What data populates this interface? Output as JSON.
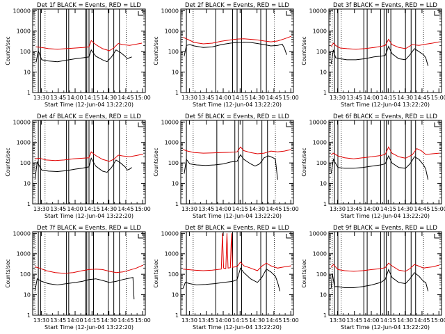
{
  "colors": {
    "events": "#000000",
    "lld": "#e00000",
    "axes": "#000000",
    "background": "#ffffff"
  },
  "shared_axes": {
    "ylabel": "Counts/sec",
    "xlabel": "Start Time (12-Jun-04 13:22:20)",
    "x_tick_labels": [
      "13:30",
      "13:45",
      "14:00",
      "14:15",
      "14:30",
      "14:45",
      "15:00"
    ],
    "x_tick_minutes": [
      7.667,
      22.667,
      37.667,
      52.667,
      67.667,
      82.667,
      97.667
    ],
    "y_tick_labels": [
      "1",
      "10",
      "100",
      "1000",
      "10000"
    ],
    "y_tick_values": [
      1,
      10,
      100,
      1000,
      10000
    ],
    "xlim_minutes": [
      0,
      100
    ],
    "ylim": [
      1,
      12000
    ],
    "yscale": "log"
  },
  "chart_data": [
    {
      "type": "line",
      "title": "Det 1f BLACK = Events, RED = LLD",
      "series": [
        {
          "color": "#e00000",
          "x": [
            3,
            8,
            14,
            22,
            30,
            38,
            45,
            50,
            52,
            56,
            62,
            68,
            72,
            76,
            80,
            86,
            92,
            97
          ],
          "y": [
            170,
            160,
            140,
            130,
            140,
            150,
            160,
            170,
            350,
            220,
            140,
            110,
            150,
            250,
            220,
            200,
            230,
            260
          ]
        },
        {
          "color": "#000000",
          "x": [
            3,
            5,
            8,
            14,
            22,
            30,
            38,
            45,
            50,
            52,
            56,
            62,
            66,
            70,
            74,
            78,
            82,
            84,
            86,
            88
          ],
          "y": [
            30,
            110,
            40,
            35,
            32,
            38,
            45,
            50,
            55,
            120,
            60,
            40,
            32,
            55,
            120,
            90,
            60,
            45,
            50,
            55
          ]
        }
      ],
      "vlines_solid": [
        5,
        7,
        30,
        32,
        47,
        48,
        50,
        54,
        67,
        72,
        77
      ],
      "vlines_dotted": [
        2,
        11,
        83
      ]
    },
    {
      "type": "line",
      "title": "Det 2f BLACK = Events, RED = LLD",
      "series": [
        {
          "color": "#e00000",
          "x": [
            2,
            6,
            12,
            20,
            28,
            36,
            44,
            50,
            56,
            62,
            68,
            74,
            80,
            86,
            92,
            98
          ],
          "y": [
            500,
            400,
            280,
            240,
            260,
            320,
            370,
            410,
            420,
            400,
            370,
            330,
            300,
            330,
            420,
            560
          ]
        },
        {
          "color": "#000000",
          "x": [
            3,
            5,
            8,
            12,
            20,
            28,
            36,
            44,
            50,
            56,
            62,
            68,
            74,
            80,
            86,
            90,
            92,
            94
          ],
          "y": [
            60,
            200,
            220,
            190,
            160,
            170,
            220,
            260,
            280,
            290,
            280,
            250,
            220,
            190,
            200,
            230,
            150,
            70
          ]
        }
      ],
      "vlines_solid": [
        5,
        31,
        46,
        50,
        54,
        71,
        76
      ],
      "vlines_dotted": [
        11,
        83
      ]
    },
    {
      "type": "line",
      "title": "Det 3f BLACK = Events, RED = LLD",
      "series": [
        {
          "color": "#e00000",
          "x": [
            2,
            4,
            6,
            10,
            16,
            24,
            32,
            40,
            46,
            50,
            53,
            56,
            62,
            68,
            74,
            80,
            86,
            92,
            98
          ],
          "y": [
            180,
            260,
            200,
            150,
            140,
            130,
            140,
            160,
            180,
            200,
            400,
            220,
            160,
            140,
            220,
            200,
            230,
            260,
            300
          ]
        },
        {
          "color": "#000000",
          "x": [
            2,
            4,
            6,
            10,
            16,
            24,
            32,
            40,
            46,
            50,
            53,
            56,
            62,
            68,
            72,
            76,
            80,
            84,
            86,
            88
          ],
          "y": [
            25,
            120,
            50,
            45,
            40,
            40,
            45,
            55,
            60,
            65,
            180,
            80,
            45,
            40,
            70,
            140,
            100,
            70,
            50,
            20
          ]
        }
      ],
      "vlines_solid": [
        5,
        8,
        31,
        34,
        46,
        49,
        51,
        55,
        68,
        73,
        77
      ],
      "vlines_dotted": [
        3,
        11,
        84
      ]
    },
    {
      "type": "line",
      "title": "Det 4f BLACK = Events, RED = LLD",
      "series": [
        {
          "color": "#e00000",
          "x": [
            2,
            6,
            12,
            20,
            28,
            36,
            44,
            50,
            52,
            56,
            62,
            68,
            72,
            76,
            80,
            86,
            92,
            98
          ],
          "y": [
            160,
            170,
            140,
            130,
            140,
            160,
            170,
            180,
            350,
            230,
            150,
            120,
            150,
            240,
            220,
            200,
            230,
            270
          ]
        },
        {
          "color": "#000000",
          "x": [
            2,
            4,
            8,
            14,
            22,
            30,
            38,
            44,
            50,
            52,
            56,
            62,
            66,
            70,
            74,
            78,
            82,
            84,
            86,
            88
          ],
          "y": [
            15,
            110,
            45,
            40,
            38,
            42,
            50,
            55,
            65,
            170,
            70,
            40,
            35,
            60,
            140,
            100,
            65,
            45,
            50,
            60
          ]
        }
      ],
      "vlines_solid": [
        5,
        7,
        30,
        32,
        47,
        48,
        50,
        54,
        67,
        72,
        77
      ],
      "vlines_dotted": [
        2,
        11,
        83
      ]
    },
    {
      "type": "line",
      "title": "Det 5f BLACK = Events, RED = LLD",
      "series": [
        {
          "color": "#e00000",
          "x": [
            2,
            6,
            12,
            20,
            28,
            36,
            44,
            50,
            53,
            56,
            62,
            68,
            74,
            80,
            86,
            92,
            98
          ],
          "y": [
            450,
            380,
            320,
            300,
            310,
            320,
            330,
            350,
            600,
            400,
            320,
            280,
            300,
            380,
            350,
            380,
            450
          ]
        },
        {
          "color": "#000000",
          "x": [
            3,
            5,
            8,
            14,
            22,
            30,
            38,
            44,
            50,
            53,
            56,
            62,
            66,
            70,
            74,
            78,
            82,
            84,
            86
          ],
          "y": [
            30,
            150,
            90,
            80,
            75,
            80,
            90,
            110,
            120,
            250,
            150,
            90,
            70,
            90,
            180,
            220,
            180,
            150,
            15
          ]
        }
      ],
      "vlines_solid": [
        5,
        32,
        48,
        51,
        55,
        72,
        77
      ],
      "vlines_dotted": [
        11,
        84
      ]
    },
    {
      "type": "line",
      "title": "Det 6f BLACK = Events, RED = LLD",
      "series": [
        {
          "color": "#e00000",
          "x": [
            2,
            4,
            8,
            14,
            22,
            30,
            38,
            46,
            50,
            53,
            56,
            62,
            68,
            74,
            78,
            82,
            86,
            92,
            98
          ],
          "y": [
            250,
            300,
            220,
            180,
            160,
            180,
            200,
            230,
            260,
            600,
            300,
            200,
            170,
            250,
            500,
            400,
            260,
            280,
            300
          ]
        },
        {
          "color": "#000000",
          "x": [
            2,
            4,
            8,
            14,
            22,
            30,
            38,
            46,
            50,
            53,
            56,
            62,
            68,
            72,
            76,
            80,
            84,
            86,
            88
          ],
          "y": [
            30,
            150,
            60,
            55,
            55,
            60,
            70,
            80,
            90,
            220,
            100,
            60,
            55,
            90,
            200,
            150,
            80,
            50,
            15
          ]
        }
      ],
      "vlines_solid": [
        5,
        8,
        31,
        34,
        46,
        49,
        51,
        55,
        68,
        73,
        77
      ],
      "vlines_dotted": [
        3,
        11,
        84
      ]
    },
    {
      "type": "line",
      "title": "Det 7f BLACK = Events, RED = LLD",
      "series": [
        {
          "color": "#e00000",
          "x": [
            2,
            6,
            12,
            20,
            28,
            36,
            44,
            50,
            56,
            62,
            68,
            74,
            80,
            86,
            92,
            98
          ],
          "y": [
            230,
            200,
            150,
            120,
            110,
            120,
            150,
            170,
            180,
            170,
            140,
            120,
            130,
            160,
            200,
            280
          ]
        },
        {
          "color": "#000000",
          "x": [
            2,
            4,
            8,
            14,
            22,
            30,
            38,
            44,
            50,
            56,
            62,
            68,
            74,
            80,
            86,
            89,
            90
          ],
          "y": [
            15,
            60,
            45,
            35,
            30,
            35,
            40,
            45,
            55,
            60,
            50,
            40,
            45,
            55,
            65,
            70,
            6
          ]
        }
      ],
      "vlines_solid": [
        5,
        7,
        30,
        32,
        47,
        48,
        50,
        54,
        67,
        72,
        77
      ],
      "vlines_dotted": [
        2,
        11,
        83
      ]
    },
    {
      "type": "line",
      "title": "Det 8f BLACK = Events, RED = LLD",
      "series": [
        {
          "color": "#e00000",
          "x": [
            2,
            6,
            12,
            20,
            28,
            36,
            37,
            38,
            40,
            41,
            42,
            44,
            45,
            46,
            50,
            53,
            56,
            62,
            68,
            72,
            76,
            80,
            86,
            92,
            98
          ],
          "y": [
            180,
            170,
            160,
            150,
            160,
            180,
            10000,
            200,
            190,
            10000,
            200,
            210,
            10000,
            220,
            240,
            400,
            260,
            200,
            150,
            250,
            350,
            260,
            200,
            230,
            260
          ]
        },
        {
          "color": "#000000",
          "x": [
            2,
            4,
            8,
            14,
            22,
            30,
            38,
            46,
            50,
            53,
            56,
            62,
            68,
            72,
            76,
            80,
            84,
            86,
            88
          ],
          "y": [
            20,
            40,
            35,
            30,
            32,
            35,
            40,
            45,
            55,
            200,
            120,
            60,
            40,
            70,
            180,
            130,
            80,
            40,
            15
          ]
        }
      ],
      "vlines_solid": [
        5,
        31,
        46,
        50,
        54,
        71,
        76
      ],
      "vlines_dotted": [
        11,
        83
      ]
    },
    {
      "type": "line",
      "title": "Det 9f BLACK = Events, RED = LLD",
      "series": [
        {
          "color": "#e00000",
          "x": [
            2,
            4,
            8,
            14,
            22,
            30,
            38,
            46,
            50,
            53,
            56,
            62,
            68,
            72,
            76,
            80,
            84,
            86,
            92,
            98
          ],
          "y": [
            220,
            300,
            170,
            150,
            140,
            150,
            170,
            190,
            210,
            350,
            260,
            160,
            140,
            190,
            300,
            250,
            200,
            210,
            230,
            280
          ]
        },
        {
          "color": "#000000",
          "x": [
            2,
            3,
            5,
            8,
            14,
            22,
            30,
            38,
            46,
            50,
            53,
            56,
            62,
            68,
            72,
            76,
            80,
            84,
            86,
            88
          ],
          "y": [
            20,
            110,
            25,
            25,
            22,
            22,
            25,
            30,
            40,
            55,
            170,
            70,
            40,
            35,
            60,
            120,
            80,
            45,
            40,
            15
          ]
        }
      ],
      "vlines_solid": [
        5,
        8,
        31,
        34,
        46,
        49,
        51,
        55,
        68,
        73,
        77
      ],
      "vlines_dotted": [
        3,
        11,
        84
      ]
    }
  ]
}
